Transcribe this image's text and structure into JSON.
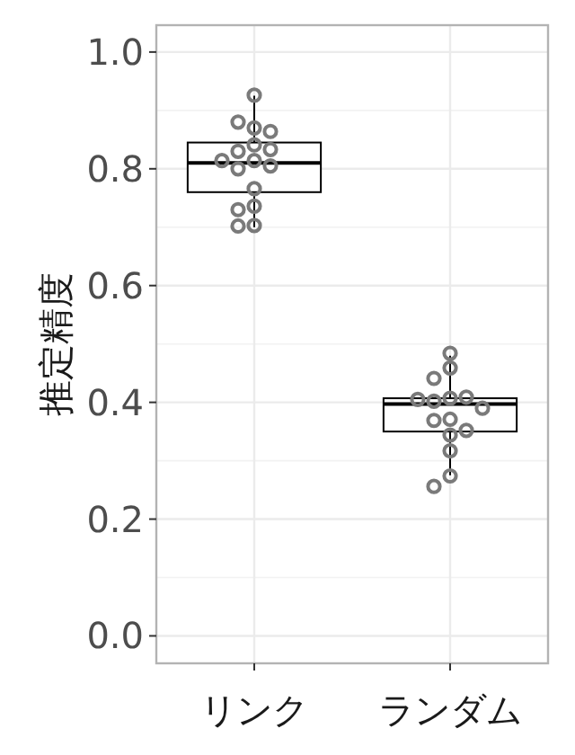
{
  "chart_data": {
    "type": "box",
    "ylabel": "推定精度",
    "categories": [
      "リンク",
      "ランダム"
    ],
    "boxes": [
      {
        "low": 0.7,
        "q1": 0.76,
        "median": 0.81,
        "q3": 0.845,
        "high": 0.925
      },
      {
        "low": 0.275,
        "q1": 0.35,
        "median": 0.397,
        "q3": 0.407,
        "high": 0.48
      }
    ],
    "series": [
      {
        "type": "scatter",
        "color": "#7a7a7a",
        "x": [
          "リンク",
          "リンク",
          "リンク",
          "リンク",
          "リンク",
          "リンク",
          "リンク",
          "リンク",
          "リンク",
          "リンク",
          "リンク",
          "リンク",
          "リンク",
          "リンク",
          "リンク",
          "リンク",
          "ランダム",
          "ランダム",
          "ランダム",
          "ランダム",
          "ランダム",
          "ランダム",
          "ランダム",
          "ランダム",
          "ランダム",
          "ランダム",
          "ランダム",
          "ランダム",
          "ランダム",
          "ランダム",
          "ランダム"
        ],
        "values": [
          0.926,
          0.87,
          0.88,
          0.864,
          0.841,
          0.83,
          0.833,
          0.814,
          0.814,
          0.8,
          0.805,
          0.766,
          0.736,
          0.73,
          0.703,
          0.702,
          0.484,
          0.459,
          0.441,
          0.407,
          0.402,
          0.409,
          0.405,
          0.39,
          0.371,
          0.369,
          0.352,
          0.344,
          0.317,
          0.274,
          0.256
        ]
      }
    ],
    "marker": "circle",
    "ylim": [
      -0.047,
      1.046
    ],
    "yticks": [
      {
        "value": 0,
        "label": "0.0"
      },
      0.2,
      0.4,
      0.6,
      0.8,
      {
        "value": 1,
        "label": "1.0"
      }
    ],
    "grid": true
  }
}
